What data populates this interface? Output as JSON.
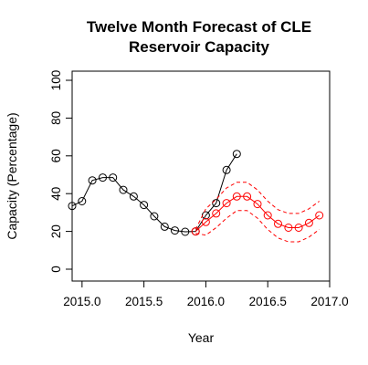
{
  "chart_data": {
    "type": "line",
    "title_lines": [
      "Twelve Month Forecast of CLE",
      "Reservoir Capacity"
    ],
    "xlabel": "Year",
    "ylabel": "Capacity (Percentage)",
    "xlim": [
      2014.92,
      2017.0
    ],
    "ylim": [
      0,
      100
    ],
    "x_ticks": [
      {
        "value": 2015.0,
        "label": "2015.0"
      },
      {
        "value": 2015.5,
        "label": "2015.5"
      },
      {
        "value": 2016.0,
        "label": "2016.0"
      },
      {
        "value": 2016.5,
        "label": "2016.5"
      },
      {
        "value": 2017.0,
        "label": "2017.0"
      }
    ],
    "y_ticks": [
      {
        "value": 0,
        "label": "0"
      },
      {
        "value": 20,
        "label": "20"
      },
      {
        "value": 40,
        "label": "40"
      },
      {
        "value": 60,
        "label": "60"
      },
      {
        "value": 80,
        "label": "80"
      },
      {
        "value": 100,
        "label": "100"
      }
    ],
    "series": [
      {
        "role": "observed",
        "color": "#000000",
        "line_style": "solid",
        "marker": "open-circle",
        "x": [
          2014.92,
          2015.0,
          2015.083,
          2015.167,
          2015.25,
          2015.333,
          2015.417,
          2015.5,
          2015.583,
          2015.667,
          2015.75,
          2015.833,
          2015.917,
          2016.0,
          2016.083,
          2016.167,
          2016.25
        ],
        "y": [
          33.5,
          36,
          47,
          48.5,
          48.5,
          42,
          38.5,
          34,
          28,
          22.5,
          20.5,
          19.8,
          20,
          28.5,
          35,
          52.5,
          61
        ]
      },
      {
        "role": "forecast",
        "color": "#ff0000",
        "line_style": "solid",
        "marker": "open-circle",
        "x": [
          2015.917,
          2016.0,
          2016.083,
          2016.167,
          2016.25,
          2016.333,
          2016.417,
          2016.5,
          2016.583,
          2016.667,
          2016.75,
          2016.833,
          2016.917
        ],
        "y": [
          20,
          25,
          29.5,
          35,
          38.5,
          38.5,
          34.5,
          28.5,
          24,
          22,
          22,
          24.5,
          28.5
        ]
      },
      {
        "role": "upper-bound",
        "color": "#ff0000",
        "line_style": "dashed",
        "marker": "none",
        "x": [
          2015.917,
          2016.0,
          2016.083,
          2016.167,
          2016.25,
          2016.333,
          2016.417,
          2016.5,
          2016.583,
          2016.667,
          2016.75,
          2016.833,
          2016.917
        ],
        "y": [
          21,
          32,
          37,
          43,
          46,
          46,
          42,
          36,
          31.5,
          29.5,
          29.5,
          32,
          36
        ]
      },
      {
        "role": "lower-bound",
        "color": "#ff0000",
        "line_style": "dashed",
        "marker": "none",
        "x": [
          2015.917,
          2016.0,
          2016.083,
          2016.167,
          2016.25,
          2016.333,
          2016.417,
          2016.5,
          2016.583,
          2016.667,
          2016.75,
          2016.833,
          2016.917
        ],
        "y": [
          19,
          18,
          22,
          27,
          31,
          31,
          27,
          21,
          16.5,
          14.5,
          14.5,
          17,
          21
        ]
      }
    ],
    "grid": false,
    "legend": "none"
  }
}
